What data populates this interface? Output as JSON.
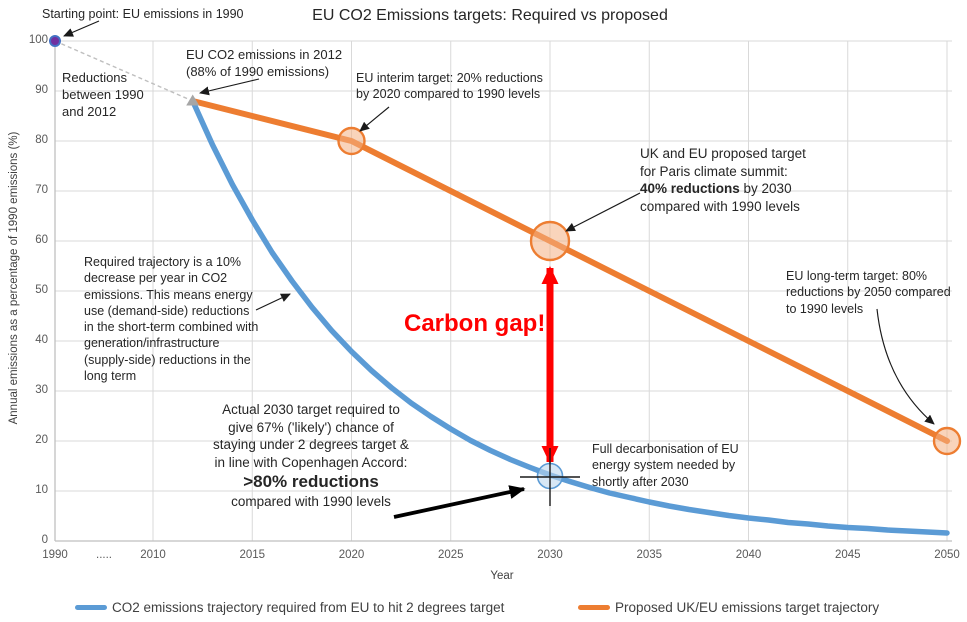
{
  "title": "EU CO2 Emissions targets: Required vs proposed",
  "axes": {
    "y_label": "Annual emissions as a percentage of 1990 emissions (%)",
    "x_label": "Year",
    "y_ticks": [
      "100",
      "90",
      "80",
      "70",
      "60",
      "50",
      "40",
      "30",
      "20",
      "10",
      "0"
    ],
    "x_ticks": [
      {
        "label": "1990",
        "year": 1990
      },
      {
        "label": ".....",
        "year": null
      },
      {
        "label": "2010",
        "year": 2010
      },
      {
        "label": "2015",
        "year": 2015
      },
      {
        "label": "2020",
        "year": 2020
      },
      {
        "label": "2025",
        "year": 2025
      },
      {
        "label": "2030",
        "year": 2030
      },
      {
        "label": "2035",
        "year": 2035
      },
      {
        "label": "2040",
        "year": 2040
      },
      {
        "label": "2045",
        "year": 2045
      },
      {
        "label": "2050",
        "year": 2050
      }
    ]
  },
  "legend": {
    "items": [
      {
        "label": "CO2 emissions trajectory required from EU to hit 2 degrees target",
        "color": "#5B9BD5"
      },
      {
        "label": "Proposed UK/EU emissions target trajectory",
        "color": "#ED7D31"
      }
    ]
  },
  "chart_data": {
    "type": "line",
    "title": "EU CO2 Emissions targets: Required vs proposed",
    "xlabel": "Year",
    "ylabel": "Annual emissions as a percentage of 1990 emissions (%)",
    "xlim": [
      1990,
      2050
    ],
    "ylim": [
      0,
      100
    ],
    "grid": true,
    "legend_position": "bottom",
    "series": [
      {
        "name": "CO2 emissions trajectory required from EU to hit 2 degrees target",
        "color": "#5B9BD5",
        "x": [
          2012,
          2013,
          2014,
          2015,
          2016,
          2017,
          2018,
          2019,
          2020,
          2021,
          2022,
          2023,
          2024,
          2025,
          2026,
          2027,
          2028,
          2029,
          2030,
          2031,
          2032,
          2033,
          2034,
          2035,
          2036,
          2037,
          2038,
          2039,
          2040,
          2041,
          2042,
          2043,
          2044,
          2045,
          2046,
          2047,
          2048,
          2049,
          2050
        ],
        "y": [
          88,
          79.2,
          71.3,
          64.2,
          57.7,
          52,
          46.8,
          42.1,
          37.9,
          34.1,
          30.7,
          27.6,
          24.9,
          22.4,
          20.1,
          18.1,
          16.3,
          14.7,
          13.2,
          11.9,
          10.7,
          9.6,
          8.7,
          7.8,
          7,
          6.3,
          5.7,
          5.1,
          4.6,
          4.2,
          3.7,
          3.4,
          3,
          2.7,
          2.5,
          2.2,
          2,
          1.8,
          1.6
        ]
      },
      {
        "name": "Proposed UK/EU emissions target trajectory",
        "color": "#ED7D31",
        "x": [
          2012,
          2020,
          2030,
          2050
        ],
        "y": [
          88,
          80,
          60,
          20
        ]
      }
    ],
    "markers": [
      {
        "name": "starting-point",
        "year": 1990,
        "value": 100,
        "shape": "dot",
        "color": "#7030A0"
      },
      {
        "name": "emissions-2012",
        "year": 2012,
        "value": 88,
        "shape": "triangle",
        "color": "#A6A6A6"
      },
      {
        "name": "interim-2020",
        "year": 2020,
        "value": 80,
        "shape": "circle",
        "color": "#ED7D31"
      },
      {
        "name": "proposed-2030",
        "year": 2030,
        "value": 60,
        "shape": "circle-large",
        "color": "#ED7D31"
      },
      {
        "name": "longterm-2050",
        "year": 2050,
        "value": 20,
        "shape": "circle",
        "color": "#ED7D31"
      },
      {
        "name": "required-2030",
        "year": 2030,
        "value": 13,
        "shape": "circle-crosshair",
        "color": "#5B9BD5"
      }
    ]
  },
  "annotations": {
    "starting_point": "Starting point: EU emissions in 1990",
    "reductions": "Reductions between 1990 and 2012",
    "emissions_2012": "EU CO2 emissions in 2012 (88% of 1990 emissions)",
    "interim": "EU interim target: 20% reductions by 2020 compared to 1990 levels",
    "paris": {
      "pre": "UK and EU proposed target for Paris climate summit: ",
      "bold": "40% reductions",
      "post": " by 2030 compared with 1990 levels"
    },
    "carbon_gap": "Carbon gap!",
    "longterm": "EU long-term target: 80% reductions by 2050 compared to 1990 levels",
    "required_trajectory": "Required trajectory is a 10% decrease per year in CO2 emissions. This means energy use (demand-side) reductions in the short-term combined with generation/infrastructure (supply-side) reductions in the long term",
    "actual_2030": {
      "pre": "Actual 2030 target required to give 67% ('likely') chance of staying under 2 degrees target & in line with Copenhagen Accord:",
      "bold": ">80% reductions",
      "post": "compared with 1990 levels"
    },
    "full_decarbonisation": "Full decarbonisation of EU energy system needed by shortly after 2030"
  },
  "colors": {
    "required_line": "#5B9BD5",
    "proposed_line": "#ED7D31",
    "carbon_gap": "#FF0000",
    "starting_point_marker": "#7030A0",
    "marker_2012": "#A6A6A6",
    "gridline": "#D9D9D9"
  }
}
